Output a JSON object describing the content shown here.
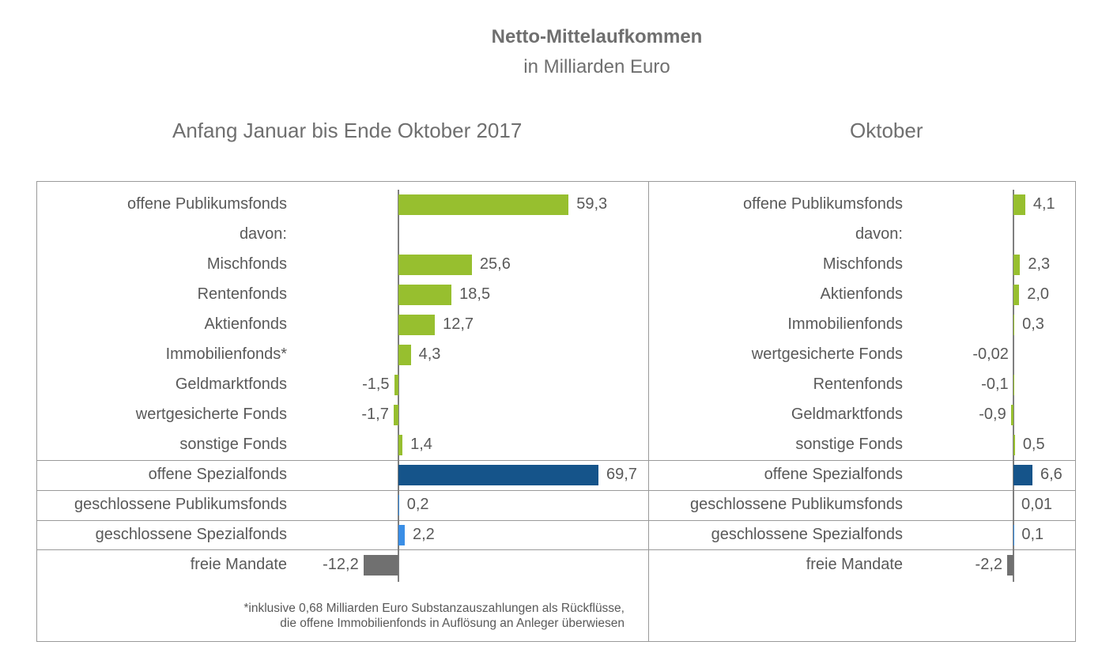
{
  "colors": {
    "green": "#97bf2f",
    "dark_blue": "#15548a",
    "light_blue": "#3a8ee6",
    "gray": "#707070"
  },
  "chart_data": {
    "type": "bar",
    "orientation": "horizontal",
    "title": "Netto-Mittelaufkommen",
    "subtitle": "in Milliarden Euro",
    "footnote_line1": "*inklusive 0,68 Milliarden Euro Substanzauszahlungen als Rückflüsse,",
    "footnote_line2": "die offene Immobilienfonds in Auflösung an Anleger überwiesen",
    "panels": [
      {
        "title": "Anfang Januar bis Ende Oktober 2017",
        "rows": [
          {
            "label": "offene Publikumsfonds",
            "value": 59.3,
            "text": "59,3",
            "color": "green"
          },
          {
            "label": "davon:",
            "value": null,
            "text": "",
            "color": "green"
          },
          {
            "label": "Mischfonds",
            "value": 25.6,
            "text": "25,6",
            "color": "green"
          },
          {
            "label": "Rentenfonds",
            "value": 18.5,
            "text": "18,5",
            "color": "green"
          },
          {
            "label": "Aktienfonds",
            "value": 12.7,
            "text": "12,7",
            "color": "green"
          },
          {
            "label": "Immobilienfonds*",
            "value": 4.3,
            "text": "4,3",
            "color": "green"
          },
          {
            "label": "Geldmarktfonds",
            "value": -1.5,
            "text": "-1,5",
            "color": "green"
          },
          {
            "label": "wertgesicherte Fonds",
            "value": -1.7,
            "text": "-1,7",
            "color": "green"
          },
          {
            "label": "sonstige Fonds",
            "value": 1.4,
            "text": "1,4",
            "color": "green"
          },
          {
            "label": "offene Spezialfonds",
            "value": 69.7,
            "text": "69,7",
            "color": "dark_blue"
          },
          {
            "label": "geschlossene Publikumsfonds",
            "value": 0.2,
            "text": "0,2",
            "color": "light_blue"
          },
          {
            "label": "geschlossene Spezialfonds",
            "value": 2.2,
            "text": "2,2",
            "color": "light_blue"
          },
          {
            "label": "freie Mandate",
            "value": -12.2,
            "text": "-12,2",
            "color": "gray"
          }
        ]
      },
      {
        "title": "Oktober",
        "rows": [
          {
            "label": "offene Publikumsfonds",
            "value": 4.1,
            "text": "4,1",
            "color": "green"
          },
          {
            "label": "davon:",
            "value": null,
            "text": "",
            "color": "green"
          },
          {
            "label": "Mischfonds",
            "value": 2.3,
            "text": "2,3",
            "color": "green"
          },
          {
            "label": "Aktienfonds",
            "value": 2.0,
            "text": "2,0",
            "color": "green"
          },
          {
            "label": "Immobilienfonds",
            "value": 0.3,
            "text": "0,3",
            "color": "green"
          },
          {
            "label": "wertgesicherte Fonds",
            "value": -0.02,
            "text": "-0,02",
            "color": "green"
          },
          {
            "label": "Rentenfonds",
            "value": -0.1,
            "text": "-0,1",
            "color": "green"
          },
          {
            "label": "Geldmarktfonds",
            "value": -0.9,
            "text": "-0,9",
            "color": "green"
          },
          {
            "label": "sonstige Fonds",
            "value": 0.5,
            "text": "0,5",
            "color": "green"
          },
          {
            "label": "offene Spezialfonds",
            "value": 6.6,
            "text": "6,6",
            "color": "dark_blue"
          },
          {
            "label": "geschlossene Publikumsfonds",
            "value": 0.01,
            "text": "0,01",
            "color": "light_blue"
          },
          {
            "label": "geschlossene Spezialfonds",
            "value": 0.1,
            "text": "0,1",
            "color": "light_blue"
          },
          {
            "label": "freie Mandate",
            "value": -2.2,
            "text": "-2,2",
            "color": "gray"
          }
        ]
      }
    ]
  }
}
